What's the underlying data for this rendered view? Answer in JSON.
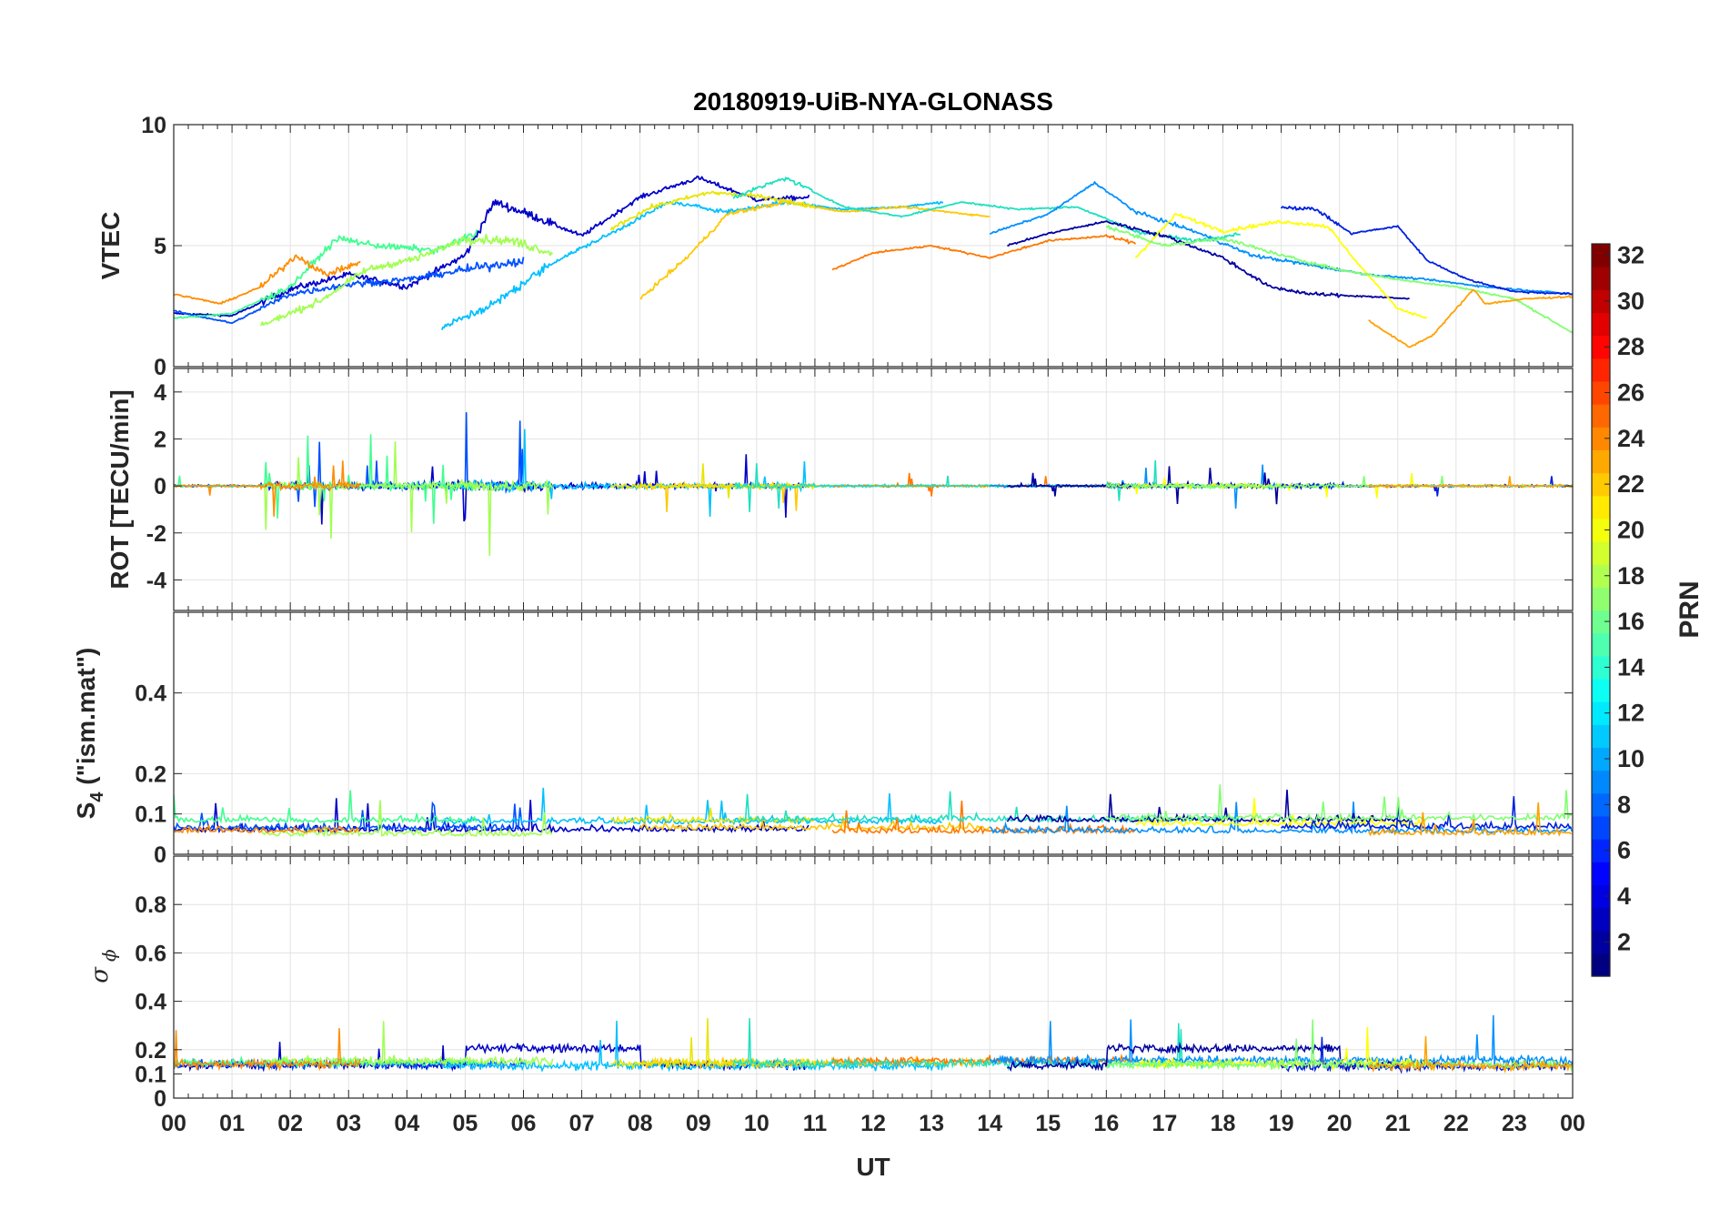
{
  "chart_data": {
    "type": "line",
    "title": "20180919-UiB-NYA-GLONASS",
    "xlabel": "UT",
    "x_ticks": [
      "00",
      "01",
      "02",
      "03",
      "04",
      "05",
      "06",
      "07",
      "08",
      "09",
      "10",
      "11",
      "12",
      "13",
      "14",
      "15",
      "16",
      "17",
      "18",
      "19",
      "20",
      "21",
      "22",
      "23",
      "00"
    ],
    "xlim": [
      0,
      24
    ],
    "grid": true,
    "panels": [
      {
        "name": "vtec",
        "ylabel": "VTEC",
        "ylim": [
          0,
          10
        ],
        "yticks": [
          0,
          5,
          10
        ],
        "yticklabels": [
          "0",
          "5",
          "10"
        ]
      },
      {
        "name": "rot",
        "ylabel": "ROT [TECU/min]",
        "ylim": [
          -5.3,
          5
        ],
        "yticks": [
          -4,
          -2,
          0,
          2,
          4
        ],
        "yticklabels": [
          "-4",
          "-2",
          "0",
          "2",
          "4"
        ]
      },
      {
        "name": "s4",
        "ylabel_main": "S",
        "ylabel_sub": "4",
        "ylabel_rest": " (\"ism.mat\")",
        "ylim": [
          0,
          0.6
        ],
        "yticks": [
          0,
          0.1,
          0.2,
          0.4
        ],
        "yticklabels": [
          "0",
          "0.1",
          "0.2",
          "0.4"
        ]
      },
      {
        "name": "sigma",
        "ylabel_main": "σ",
        "ylabel_sub": "ϕ",
        "ylim": [
          0,
          1
        ],
        "yticks": [
          0,
          0.1,
          0.2,
          0.4,
          0.6,
          0.8
        ],
        "yticklabels": [
          "0",
          "0.1",
          "0.2",
          "0.4",
          "0.6",
          "0.8"
        ]
      }
    ],
    "colorbar": {
      "label": "PRN",
      "range": [
        1,
        32
      ],
      "ticks": [
        2,
        4,
        6,
        8,
        10,
        12,
        14,
        16,
        18,
        20,
        22,
        24,
        26,
        28,
        30,
        32
      ],
      "colormap": "jet"
    },
    "series": [
      {
        "prn": 3,
        "color": "#0000c8",
        "start": 0.0,
        "end": 10.9,
        "vtec": [
          [
            0,
            2.2
          ],
          [
            1,
            2.1
          ],
          [
            2,
            3.2
          ],
          [
            3,
            3.8
          ],
          [
            4,
            3.3
          ],
          [
            5,
            4.6
          ],
          [
            5.5,
            6.8
          ],
          [
            6.2,
            6.2
          ],
          [
            7,
            5.4
          ],
          [
            8,
            7.0
          ],
          [
            9,
            7.8
          ],
          [
            10,
            6.9
          ],
          [
            10.9,
            7.0
          ]
        ]
      },
      {
        "prn": 7,
        "color": "#0050ff",
        "start": 0.0,
        "end": 6.0,
        "vtec": [
          [
            0,
            2.3
          ],
          [
            1,
            1.8
          ],
          [
            2,
            3.0
          ],
          [
            3,
            3.4
          ],
          [
            4,
            3.6
          ],
          [
            5,
            4.0
          ],
          [
            6,
            4.4
          ]
        ]
      },
      {
        "prn": 12,
        "color": "#00c0ff",
        "start": 4.6,
        "end": 13.2,
        "vtec": [
          [
            4.6,
            1.6
          ],
          [
            5.5,
            2.6
          ],
          [
            6.5,
            4.3
          ],
          [
            7.5,
            5.5
          ],
          [
            8.5,
            6.8
          ],
          [
            9.5,
            6.4
          ],
          [
            10.5,
            6.8
          ],
          [
            11.5,
            6.5
          ],
          [
            12.5,
            6.6
          ],
          [
            13.2,
            6.8
          ]
        ]
      },
      {
        "prn": 16,
        "color": "#40ff90",
        "start": 0.0,
        "end": 5.2,
        "vtec": [
          [
            0,
            2.0
          ],
          [
            1,
            2.2
          ],
          [
            2,
            3.3
          ],
          [
            2.8,
            5.3
          ],
          [
            3.5,
            5.0
          ],
          [
            4.5,
            4.8
          ],
          [
            5.2,
            5.5
          ]
        ]
      },
      {
        "prn": 18,
        "color": "#a0ff50",
        "start": 1.5,
        "end": 6.5,
        "vtec": [
          [
            1.5,
            1.7
          ],
          [
            2.5,
            2.7
          ],
          [
            3.3,
            4.0
          ],
          [
            4.2,
            4.5
          ],
          [
            5,
            5.3
          ],
          [
            5.8,
            5.2
          ],
          [
            6.5,
            4.7
          ]
        ]
      },
      {
        "prn": 23,
        "color": "#ff8c00",
        "start": 0.0,
        "end": 3.2,
        "vtec": [
          [
            0,
            3.0
          ],
          [
            0.8,
            2.6
          ],
          [
            1.5,
            3.3
          ],
          [
            2.1,
            4.6
          ],
          [
            2.6,
            3.8
          ],
          [
            3.2,
            4.3
          ]
        ]
      },
      {
        "prn": 21,
        "color": "#ffc800",
        "start": 8.0,
        "end": 14.0,
        "vtec": [
          [
            8,
            2.8
          ],
          [
            8.8,
            4.5
          ],
          [
            9.5,
            6.3
          ],
          [
            10.5,
            6.8
          ],
          [
            11.5,
            6.4
          ],
          [
            12.5,
            6.6
          ],
          [
            14,
            6.2
          ]
        ]
      },
      {
        "prn": 20,
        "color": "#e6e600",
        "start": 7.5,
        "end": 11.0,
        "vtec": [
          [
            7.5,
            5.7
          ],
          [
            8.2,
            6.6
          ],
          [
            9.2,
            7.2
          ],
          [
            10.2,
            7.0
          ],
          [
            11,
            6.6
          ]
        ]
      },
      {
        "prn": 24,
        "color": "#ff7800",
        "start": 11.3,
        "end": 16.5,
        "vtec": [
          [
            11.3,
            4.0
          ],
          [
            12,
            4.7
          ],
          [
            13,
            5.0
          ],
          [
            14,
            4.5
          ],
          [
            15,
            5.2
          ],
          [
            16,
            5.4
          ],
          [
            16.5,
            5.1
          ]
        ]
      },
      {
        "prn": 14,
        "color": "#20e0c0",
        "start": 9.6,
        "end": 18.3,
        "vtec": [
          [
            9.6,
            7.0
          ],
          [
            10.5,
            7.8
          ],
          [
            11.5,
            6.6
          ],
          [
            12.5,
            6.2
          ],
          [
            13.5,
            6.8
          ],
          [
            14.5,
            6.5
          ],
          [
            15.5,
            6.6
          ],
          [
            16.5,
            5.6
          ],
          [
            17.5,
            5.2
          ],
          [
            18.3,
            5.5
          ]
        ]
      },
      {
        "prn": 10,
        "color": "#0090ff",
        "start": 14.0,
        "end": 24.0,
        "vtec": [
          [
            14,
            5.5
          ],
          [
            15,
            6.3
          ],
          [
            15.8,
            7.6
          ],
          [
            16.5,
            6.4
          ],
          [
            17.5,
            5.6
          ],
          [
            18.5,
            4.6
          ],
          [
            19.5,
            4.2
          ],
          [
            20.5,
            3.8
          ],
          [
            21.5,
            3.6
          ],
          [
            22.5,
            3.3
          ],
          [
            24,
            3.0
          ]
        ]
      },
      {
        "prn": 2,
        "color": "#0000a0",
        "start": 14.3,
        "end": 21.2,
        "vtec": [
          [
            14.3,
            5.0
          ],
          [
            15,
            5.5
          ],
          [
            16,
            6.0
          ],
          [
            17,
            5.4
          ],
          [
            18,
            4.5
          ],
          [
            18.8,
            3.3
          ],
          [
            19.5,
            3.0
          ],
          [
            20.5,
            2.9
          ],
          [
            21.2,
            2.8
          ]
        ]
      },
      {
        "prn": 19,
        "color": "#ffff00",
        "start": 16.5,
        "end": 21.5,
        "vtec": [
          [
            16.5,
            4.5
          ],
          [
            17.2,
            6.3
          ],
          [
            18,
            5.6
          ],
          [
            19,
            6.0
          ],
          [
            19.8,
            5.8
          ],
          [
            20.3,
            4.3
          ],
          [
            21,
            2.4
          ],
          [
            21.5,
            2.0
          ]
        ]
      },
      {
        "prn": 5,
        "color": "#0020e0",
        "start": 19.0,
        "end": 24.0,
        "vtec": [
          [
            19,
            6.6
          ],
          [
            19.6,
            6.5
          ],
          [
            20.2,
            5.5
          ],
          [
            21,
            5.8
          ],
          [
            21.5,
            4.4
          ],
          [
            22.2,
            3.6
          ],
          [
            23,
            3.1
          ],
          [
            24,
            3.0
          ]
        ]
      },
      {
        "prn": 17,
        "color": "#80ff70",
        "start": 16.0,
        "end": 24.0,
        "vtec": [
          [
            16,
            5.8
          ],
          [
            17,
            5.0
          ],
          [
            18,
            5.3
          ],
          [
            19,
            4.6
          ],
          [
            20,
            4.0
          ],
          [
            21,
            3.6
          ],
          [
            22,
            3.3
          ],
          [
            23,
            2.8
          ],
          [
            24,
            1.4
          ]
        ]
      },
      {
        "prn": 22,
        "color": "#ffa000",
        "start": 20.5,
        "end": 24.0,
        "vtec": [
          [
            20.5,
            1.9
          ],
          [
            21.2,
            0.8
          ],
          [
            21.6,
            1.3
          ],
          [
            22.3,
            3.2
          ],
          [
            22.5,
            2.6
          ],
          [
            23.2,
            2.8
          ],
          [
            24,
            2.9
          ]
        ]
      }
    ]
  }
}
